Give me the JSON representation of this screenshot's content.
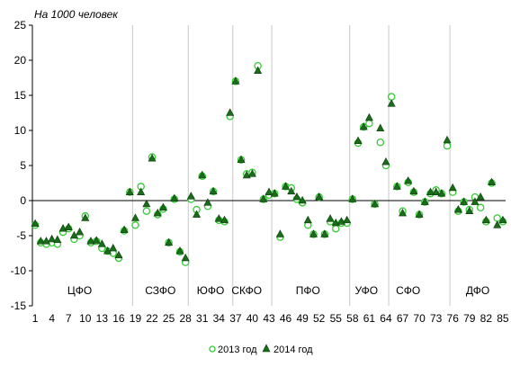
{
  "chart_data": {
    "type": "scatter",
    "title": "",
    "ylabel": "На 1000 человек",
    "xlabel": "",
    "ylim": [
      -15,
      25
    ],
    "yticks": [
      25,
      20,
      15,
      10,
      5,
      0,
      -5,
      -10,
      -15
    ],
    "xlim": [
      1,
      85
    ],
    "xticks": [
      1,
      4,
      7,
      10,
      13,
      16,
      19,
      22,
      25,
      28,
      31,
      34,
      37,
      40,
      43,
      46,
      49,
      52,
      55,
      58,
      61,
      64,
      67,
      70,
      73,
      76,
      79,
      82,
      85
    ],
    "grid": "vertical region separators",
    "regions": [
      {
        "label": "ЦФО",
        "x": 9
      },
      {
        "label": "СЗФО",
        "x": 23.5
      },
      {
        "label": "ЮФО",
        "x": 32.5
      },
      {
        "label": "СКФО",
        "x": 39
      },
      {
        "label": "ПФО",
        "x": 50
      },
      {
        "label": "УФО",
        "x": 60.5
      },
      {
        "label": "СФО",
        "x": 68
      },
      {
        "label": "ДФО",
        "x": 80.5
      }
    ],
    "separators": [
      18,
      28,
      36,
      43,
      57,
      64,
      75
    ],
    "series": [
      {
        "name": "2013 год",
        "color": "#33cc33",
        "marker": "circle",
        "x": [
          1,
          2,
          3,
          4,
          5,
          6,
          7,
          8,
          9,
          10,
          11,
          12,
          13,
          14,
          15,
          16,
          17,
          18,
          19,
          20,
          21,
          22,
          23,
          24,
          25,
          26,
          27,
          28,
          29,
          30,
          31,
          32,
          33,
          34,
          35,
          36,
          37,
          38,
          39,
          40,
          41,
          42,
          43,
          44,
          45,
          46,
          47,
          48,
          49,
          50,
          51,
          52,
          53,
          54,
          55,
          56,
          57,
          58,
          59,
          60,
          61,
          62,
          63,
          64,
          65,
          66,
          67,
          68,
          69,
          70,
          71,
          72,
          73,
          74,
          75,
          76,
          77,
          78,
          79,
          80,
          81,
          82,
          83,
          84,
          85
        ],
        "y": [
          -3.5,
          -6,
          -6.2,
          -6,
          -6.2,
          -4.5,
          -4,
          -5.5,
          -5,
          -2.2,
          -6,
          -5.8,
          -6.8,
          -7.2,
          -7.5,
          -8.2,
          -4.3,
          1.2,
          -3.5,
          2,
          -1.5,
          6.2,
          -2,
          -1.2,
          -6,
          0.2,
          -7.3,
          -8.8,
          0.2,
          -1.3,
          3.5,
          -0.8,
          1.3,
          -2.8,
          -3,
          12,
          17,
          5.8,
          3.8,
          4,
          19.2,
          0.2,
          0.8,
          1,
          -5.2,
          2,
          1.8,
          0.2,
          -0.3,
          -3.5,
          -4.8,
          0.5,
          -4.8,
          -3,
          -4,
          -3.2,
          -3.2,
          0.2,
          8.2,
          10.5,
          11,
          -0.5,
          8.3,
          5,
          14.8,
          2,
          -1.5,
          2.6,
          1.2,
          -2,
          -0.2,
          1,
          1.5,
          1,
          7.8,
          1.2,
          -1.5,
          -0.2,
          -1.3,
          0.5,
          -1,
          -3,
          2.5,
          -2.5,
          -3
        ]
      },
      {
        "name": "2014 год",
        "color": "#1a6b1a",
        "marker": "triangle",
        "x": [
          1,
          2,
          3,
          4,
          5,
          6,
          7,
          8,
          9,
          10,
          11,
          12,
          13,
          14,
          15,
          16,
          17,
          18,
          19,
          20,
          21,
          22,
          23,
          24,
          25,
          26,
          27,
          28,
          29,
          30,
          31,
          32,
          33,
          34,
          35,
          36,
          37,
          38,
          39,
          40,
          41,
          42,
          43,
          44,
          45,
          46,
          47,
          48,
          49,
          50,
          51,
          52,
          53,
          54,
          55,
          56,
          57,
          58,
          59,
          60,
          61,
          62,
          63,
          64,
          65,
          66,
          67,
          68,
          69,
          70,
          71,
          72,
          73,
          74,
          75,
          76,
          77,
          78,
          79,
          80,
          81,
          82,
          83,
          84,
          85
        ],
        "y": [
          -3.3,
          -5.8,
          -5.8,
          -5.5,
          -5.6,
          -4,
          -3.8,
          -5,
          -4.5,
          -2.5,
          -5.8,
          -5.7,
          -6.2,
          -7.2,
          -6.8,
          -7.8,
          -4.2,
          1.2,
          -2.5,
          1.2,
          -0.5,
          6,
          -1.8,
          -1,
          -6,
          0.3,
          -7.2,
          -8.2,
          0.6,
          -2,
          3.6,
          -0.3,
          1.3,
          -2.6,
          -2.8,
          12.5,
          17,
          5.8,
          3.6,
          3.8,
          18.5,
          0.2,
          1.2,
          1,
          -4.8,
          2,
          1.3,
          0.5,
          0,
          -2.8,
          -4.8,
          0.5,
          -4.8,
          -2.6,
          -3.2,
          -3,
          -2.8,
          0.2,
          8.5,
          10.5,
          11.8,
          -0.5,
          10.3,
          5.5,
          13.8,
          2,
          -1.8,
          2.8,
          1.3,
          -2,
          -0.2,
          1.2,
          1.2,
          1,
          8.6,
          1.8,
          -1.3,
          -0.2,
          -1.5,
          -0.2,
          0.5,
          -2.8,
          2.6,
          -3.5,
          -2.8
        ]
      }
    ],
    "legend": {
      "placement": "bottom-center",
      "items": [
        "2013 год",
        "2014 год"
      ]
    }
  }
}
